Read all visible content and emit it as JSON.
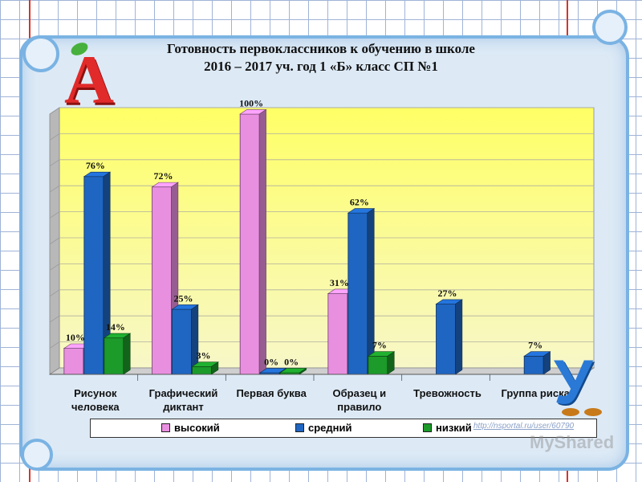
{
  "title_lines": [
    "Готовность первоклассников к обучению в школе",
    "2016 – 2017 уч. год 1 «Б» класс СП №1"
  ],
  "chart_data": {
    "type": "bar",
    "categories": [
      [
        "Рисунок",
        "человека"
      ],
      [
        "Графический",
        "диктант"
      ],
      [
        "Первая буква"
      ],
      [
        "Образец и",
        "правило"
      ],
      [
        "Тревожность"
      ],
      [
        "Группа риска"
      ]
    ],
    "series": [
      {
        "name": "высокий",
        "color": "#e98fe0",
        "values": [
          10,
          72,
          100,
          31,
          null,
          null
        ]
      },
      {
        "name": "средний",
        "color": "#1f66c2",
        "values": [
          76,
          25,
          0,
          62,
          27,
          7
        ]
      },
      {
        "name": "низкий",
        "color": "#1c9a2a",
        "values": [
          14,
          3,
          0,
          7,
          null,
          null
        ]
      }
    ],
    "value_suffix": "%",
    "ylim": [
      0,
      100
    ],
    "grid": true,
    "legend_position": "bottom"
  },
  "colors": {
    "wall_top": "#ffff66",
    "wall_bottom": "#f7f7c8",
    "side_wall": "#b8b8b8",
    "floor": "#cfcfcf"
  },
  "decorations": {
    "letter_a": "А",
    "letter_u": "У",
    "watermark_url": "http://nsportal.ru/user/60790",
    "watermark_brand": "MyShared"
  }
}
